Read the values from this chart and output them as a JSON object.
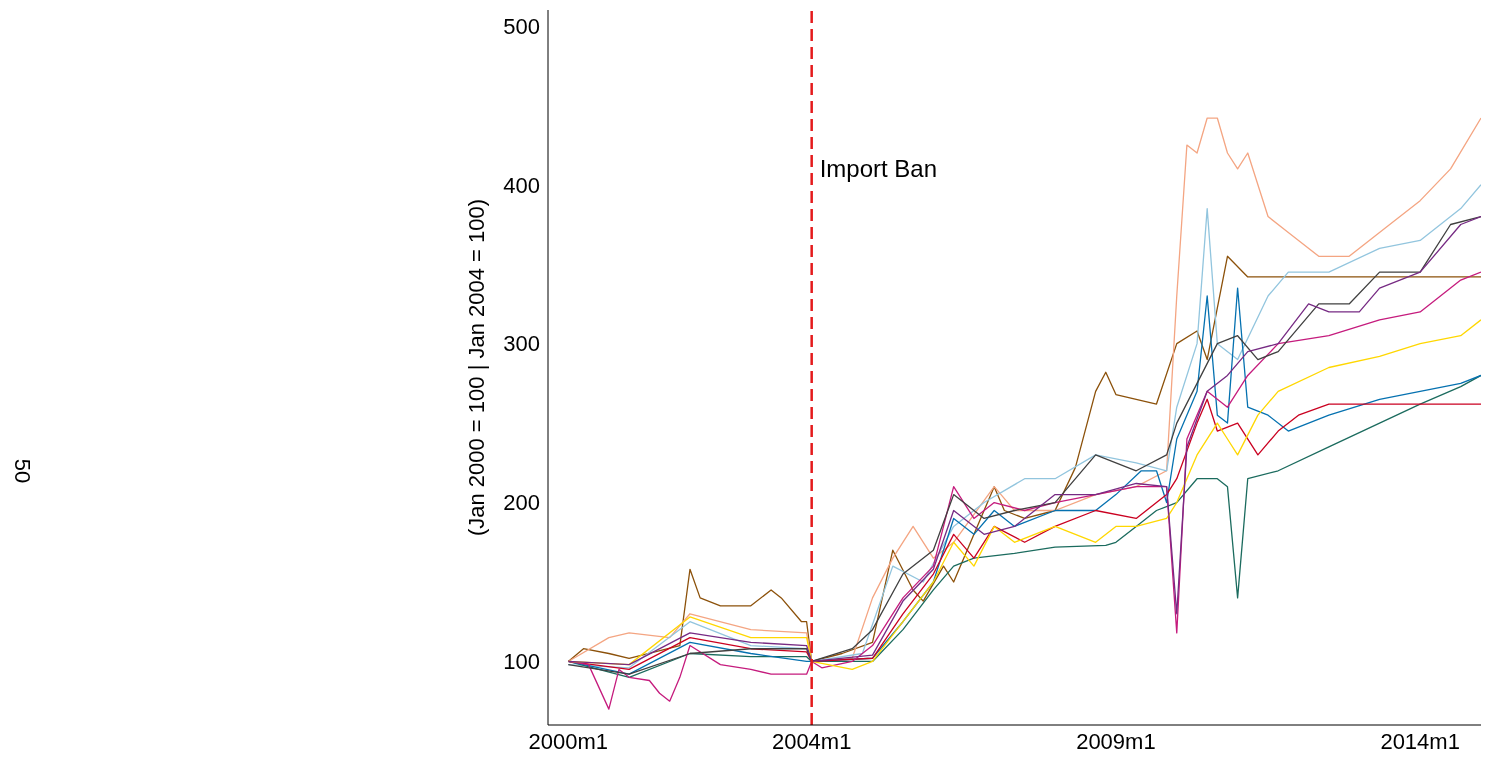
{
  "chart_data": {
    "type": "line",
    "ylabel": "(Jan 2000 = 100 | Jan 2004 = 100)",
    "annotations": [
      "50"
    ],
    "xlim": [
      "1999-09",
      "2015-01"
    ],
    "xticks": [
      {
        "value": "2000-01",
        "label": "2000m1"
      },
      {
        "value": "2004-01",
        "label": "2004m1"
      },
      {
        "value": "2009-01",
        "label": "2009m1"
      },
      {
        "value": "2014-01",
        "label": "2014m1"
      }
    ],
    "ylim": [
      60,
      510
    ],
    "yticks": [
      100,
      200,
      300,
      400,
      500
    ],
    "marker": "none",
    "line_style": "solid",
    "ref_lines": [
      {
        "axis": "x",
        "value": "2004-01",
        "label": "Import Ban",
        "color": "#e41a1c",
        "line_style": "dashed"
      }
    ],
    "series": [
      {
        "color": "#8c510a",
        "x": [
          "2000-01",
          "2000-04",
          "2000-09",
          "2001-01",
          "2001-11",
          "2002-01",
          "2002-03",
          "2002-07",
          "2003-01",
          "2003-05",
          "2003-07",
          "2003-11",
          "2003-12",
          "2004-01",
          "2004-07",
          "2005-01",
          "2005-05",
          "2005-09",
          "2005-11",
          "2006-03",
          "2006-05",
          "2007-01",
          "2007-03",
          "2007-07",
          "2008-01",
          "2008-05",
          "2008-09",
          "2008-11",
          "2009-01",
          "2009-05",
          "2009-09",
          "2010-01",
          "2010-05",
          "2010-07",
          "2010-11",
          "2011-03",
          "2011-09",
          "2013-01",
          "2014-01",
          "2015-01"
        ],
        "values": [
          100,
          108,
          105,
          102,
          110,
          158,
          140,
          135,
          135,
          145,
          140,
          125,
          125,
          100,
          105,
          112,
          170,
          145,
          138,
          160,
          150,
          210,
          195,
          190,
          195,
          222,
          270,
          282,
          268,
          265,
          262,
          300,
          308,
          290,
          355,
          342,
          342,
          342,
          342,
          342
        ]
      },
      {
        "color": "#f4a582",
        "x": [
          "2000-01",
          "2000-09",
          "2001-01",
          "2001-09",
          "2002-01",
          "2003-01",
          "2003-12",
          "2004-01",
          "2004-09",
          "2005-01",
          "2005-05",
          "2005-09",
          "2006-01",
          "2006-05",
          "2007-01",
          "2007-05",
          "2008-01",
          "2008-09",
          "2009-05",
          "2009-11",
          "2010-01",
          "2010-03",
          "2010-05",
          "2010-07",
          "2010-09",
          "2010-11",
          "2011-01",
          "2011-03",
          "2011-07",
          "2011-11",
          "2012-05",
          "2012-11",
          "2013-07",
          "2014-01",
          "2014-07",
          "2015-01"
        ],
        "values": [
          100,
          115,
          118,
          115,
          130,
          120,
          118,
          100,
          102,
          140,
          165,
          185,
          165,
          175,
          210,
          195,
          195,
          205,
          210,
          220,
          330,
          425,
          420,
          442,
          442,
          420,
          410,
          420,
          380,
          370,
          355,
          355,
          375,
          390,
          410,
          442
        ]
      },
      {
        "color": "#92c5de",
        "x": [
          "2000-01",
          "2001-01",
          "2002-01",
          "2003-01",
          "2003-12",
          "2004-01",
          "2004-11",
          "2005-05",
          "2005-11",
          "2006-05",
          "2006-11",
          "2007-07",
          "2008-01",
          "2008-09",
          "2009-05",
          "2009-11",
          "2010-01",
          "2010-05",
          "2010-07",
          "2010-09",
          "2011-01",
          "2011-07",
          "2011-11",
          "2012-07",
          "2013-05",
          "2014-01",
          "2014-09",
          "2015-01"
        ],
        "values": [
          98,
          96,
          125,
          110,
          108,
          100,
          105,
          160,
          150,
          185,
          200,
          215,
          215,
          230,
          225,
          220,
          260,
          300,
          385,
          300,
          290,
          330,
          345,
          345,
          360,
          365,
          385,
          400
        ]
      },
      {
        "color": "#1b6b5e",
        "x": [
          "2000-01",
          "2001-01",
          "2002-01",
          "2003-01",
          "2003-12",
          "2004-01",
          "2005-01",
          "2005-07",
          "2006-01",
          "2006-05",
          "2006-09",
          "2007-05",
          "2008-01",
          "2008-11",
          "2009-01",
          "2009-05",
          "2009-09",
          "2010-01",
          "2010-05",
          "2010-09",
          "2010-11",
          "2011-01",
          "2011-03",
          "2011-09",
          "2012-07",
          "2013-05",
          "2014-01",
          "2014-09",
          "2015-01"
        ],
        "values": [
          100,
          90,
          105,
          103,
          103,
          100,
          100,
          120,
          145,
          160,
          165,
          168,
          172,
          173,
          175,
          185,
          195,
          200,
          215,
          215,
          210,
          140,
          215,
          220,
          235,
          250,
          262,
          273,
          280
        ]
      },
      {
        "color": "#0571b0",
        "x": [
          "2000-01",
          "2001-01",
          "2002-01",
          "2003-01",
          "2003-12",
          "2004-01",
          "2005-01",
          "2005-07",
          "2006-01",
          "2006-05",
          "2006-09",
          "2007-01",
          "2007-05",
          "2008-01",
          "2008-09",
          "2009-01",
          "2009-06",
          "2009-09",
          "2009-11",
          "2010-01",
          "2010-05",
          "2010-07",
          "2010-09",
          "2010-11",
          "2011-01",
          "2011-03",
          "2011-07",
          "2011-11",
          "2012-07",
          "2013-05",
          "2014-01",
          "2014-09",
          "2015-01"
        ],
        "values": [
          100,
          92,
          112,
          105,
          100,
          100,
          102,
          125,
          150,
          190,
          180,
          195,
          185,
          195,
          195,
          205,
          220,
          220,
          200,
          240,
          270,
          330,
          255,
          250,
          335,
          260,
          255,
          245,
          255,
          265,
          270,
          275,
          280
        ]
      },
      {
        "color": "#ca0020",
        "x": [
          "2000-01",
          "2001-01",
          "2002-01",
          "2003-01",
          "2003-12",
          "2004-01",
          "2005-01",
          "2005-07",
          "2006-01",
          "2006-05",
          "2006-09",
          "2007-01",
          "2007-07",
          "2008-01",
          "2008-09",
          "2009-05",
          "2009-11",
          "2010-01",
          "2010-05",
          "2010-07",
          "2010-09",
          "2011-01",
          "2011-05",
          "2011-09",
          "2012-01",
          "2012-07",
          "2013-05",
          "2014-01",
          "2014-09",
          "2015-01"
        ],
        "values": [
          100,
          95,
          115,
          108,
          106,
          100,
          102,
          130,
          155,
          180,
          165,
          185,
          175,
          185,
          195,
          190,
          205,
          215,
          250,
          265,
          245,
          250,
          230,
          245,
          255,
          262,
          262,
          262,
          262,
          262
        ]
      },
      {
        "color": "#c51b7d",
        "x": [
          "2000-01",
          "2000-05",
          "2000-09",
          "2000-11",
          "2001-01",
          "2001-05",
          "2001-07",
          "2001-09",
          "2001-11",
          "2002-01",
          "2002-07",
          "2003-01",
          "2003-05",
          "2003-12",
          "2004-01",
          "2004-03",
          "2004-09",
          "2005-01",
          "2005-07",
          "2006-01",
          "2006-05",
          "2006-09",
          "2007-01",
          "2007-07",
          "2008-01",
          "2008-09",
          "2009-05",
          "2009-11",
          "2010-01",
          "2010-03",
          "2010-07",
          "2010-11",
          "2011-03",
          "2011-09",
          "2012-07",
          "2013-05",
          "2014-01",
          "2014-09",
          "2015-01"
        ],
        "values": [
          100,
          98,
          70,
          95,
          90,
          88,
          80,
          75,
          90,
          110,
          98,
          95,
          92,
          92,
          100,
          96,
          100,
          110,
          140,
          160,
          210,
          190,
          200,
          195,
          200,
          205,
          210,
          210,
          118,
          240,
          270,
          260,
          280,
          300,
          305,
          315,
          320,
          340,
          345
        ]
      },
      {
        "color": "#ffd700",
        "x": [
          "2000-01",
          "2001-01",
          "2002-01",
          "2003-01",
          "2003-12",
          "2004-01",
          "2004-09",
          "2005-01",
          "2005-07",
          "2006-01",
          "2006-05",
          "2006-09",
          "2007-01",
          "2007-05",
          "2008-01",
          "2008-09",
          "2009-01",
          "2009-05",
          "2009-11",
          "2010-01",
          "2010-05",
          "2010-09",
          "2010-11",
          "2011-01",
          "2011-05",
          "2011-09",
          "2012-07",
          "2013-05",
          "2014-01",
          "2014-09",
          "2015-01"
        ],
        "values": [
          100,
          98,
          128,
          115,
          115,
          100,
          95,
          100,
          125,
          150,
          175,
          160,
          185,
          175,
          185,
          175,
          185,
          185,
          190,
          200,
          230,
          250,
          240,
          230,
          255,
          270,
          285,
          292,
          300,
          305,
          315
        ]
      },
      {
        "color": "#404040",
        "x": [
          "2000-01",
          "2001-01",
          "2002-01",
          "2003-01",
          "2003-12",
          "2004-01",
          "2004-09",
          "2005-01",
          "2005-07",
          "2006-01",
          "2006-05",
          "2006-11",
          "2007-05",
          "2008-01",
          "2008-09",
          "2009-05",
          "2009-11",
          "2010-01",
          "2010-05",
          "2010-09",
          "2011-01",
          "2011-05",
          "2011-09",
          "2012-05",
          "2012-11",
          "2013-05",
          "2014-01",
          "2014-07",
          "2015-01"
        ],
        "values": [
          98,
          92,
          105,
          108,
          108,
          100,
          108,
          120,
          155,
          170,
          205,
          190,
          195,
          200,
          230,
          220,
          230,
          250,
          275,
          300,
          305,
          290,
          295,
          325,
          325,
          345,
          345,
          375,
          380
        ]
      },
      {
        "color": "#762a83",
        "x": [
          "2000-01",
          "2001-01",
          "2002-01",
          "2003-01",
          "2003-12",
          "2004-01",
          "2005-01",
          "2005-07",
          "2006-01",
          "2006-05",
          "2006-11",
          "2007-05",
          "2008-01",
          "2008-09",
          "2009-05",
          "2009-11",
          "2010-01",
          "2010-03",
          "2010-07",
          "2010-11",
          "2011-03",
          "2011-09",
          "2012-03",
          "2012-07",
          "2013-01",
          "2013-05",
          "2014-01",
          "2014-09",
          "2015-01"
        ],
        "values": [
          100,
          98,
          118,
          112,
          110,
          100,
          104,
          138,
          158,
          195,
          180,
          185,
          205,
          205,
          212,
          210,
          130,
          235,
          270,
          280,
          295,
          300,
          325,
          320,
          320,
          335,
          345,
          375,
          380
        ]
      }
    ]
  }
}
